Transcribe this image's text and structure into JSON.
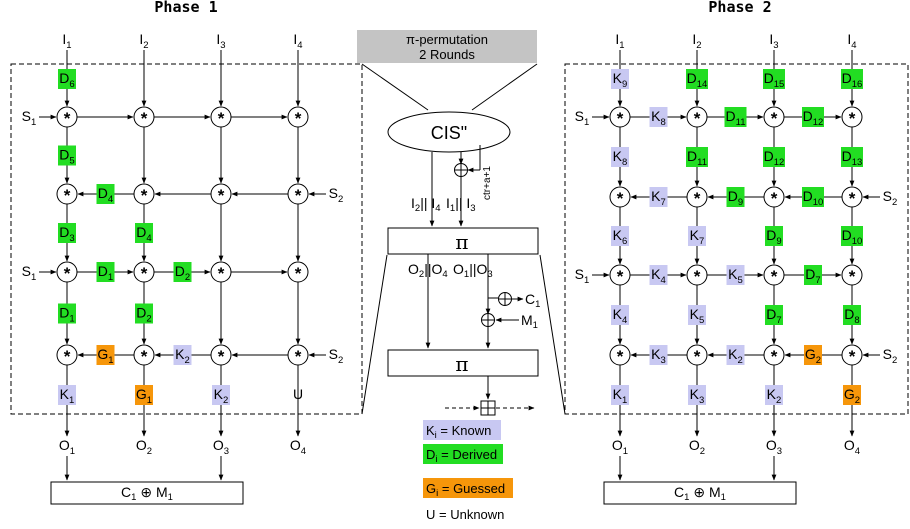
{
  "titles": {
    "phase1": "Phase 1",
    "phase2": "Phase 2"
  },
  "banner": {
    "line1": "π-permutation",
    "line2": "2 Rounds"
  },
  "cis": "CIS\"",
  "ctr": "ctr+a+1",
  "pi_symbol": "π",
  "combine": {
    "main": "C",
    "sub": "1",
    "op": " ⊕ M",
    "sub2": "1"
  },
  "legend": [
    {
      "letter": "K",
      "sub": "i",
      "text": " = Known",
      "color": "#c8c8f2"
    },
    {
      "letter": "D",
      "sub": "i",
      "text": " = Derived",
      "color": "#22dd22"
    },
    {
      "letter": "G",
      "sub": "i",
      "text": " = Guessed",
      "color": "#f6960a"
    },
    {
      "letter": "U",
      "sub": "",
      "text": " = Unknown",
      "color": ""
    }
  ],
  "colors": {
    "K": "#c8c8f2",
    "D": "#22dd22",
    "G": "#f6960a"
  },
  "phase1": {
    "inputs": [
      [
        "I",
        "1"
      ],
      [
        "I",
        "2"
      ],
      [
        "I",
        "3"
      ],
      [
        "I",
        "4"
      ]
    ],
    "outputs": [
      [
        "O",
        "1"
      ],
      [
        "O",
        "2"
      ],
      [
        "O",
        "3"
      ],
      [
        "O",
        "4"
      ]
    ],
    "side_labels": [
      [
        "S",
        "1"
      ],
      [
        "S",
        "2"
      ],
      [
        "S",
        "1"
      ],
      [
        "S",
        "2"
      ]
    ],
    "boxes": [
      [
        "D",
        "6"
      ],
      [
        "D",
        "5"
      ],
      [
        "D",
        "4"
      ],
      [
        "D",
        "3"
      ],
      [
        "D",
        "4"
      ],
      [
        "D",
        "1"
      ],
      [
        "D",
        "2"
      ],
      [
        "D",
        "1"
      ],
      [
        "D",
        "2"
      ],
      [
        "G",
        "1"
      ],
      [
        "K",
        "2"
      ],
      [
        "K",
        "1"
      ],
      [
        "G",
        "1"
      ],
      [
        "K",
        "2"
      ],
      [
        "",
        "U"
      ]
    ]
  },
  "phase2": {
    "inputs": [
      [
        "I",
        "1"
      ],
      [
        "I",
        "2"
      ],
      [
        "I",
        "3"
      ],
      [
        "I",
        "4"
      ]
    ],
    "outputs": [
      [
        "O",
        "1"
      ],
      [
        "O",
        "2"
      ],
      [
        "O",
        "3"
      ],
      [
        "O",
        "4"
      ]
    ],
    "side_labels": [
      [
        "S",
        "1"
      ],
      [
        "S",
        "2"
      ],
      [
        "S",
        "1"
      ],
      [
        "S",
        "2"
      ]
    ],
    "boxes": [
      [
        "K",
        "9"
      ],
      [
        "D",
        "14"
      ],
      [
        "D",
        "15"
      ],
      [
        "D",
        "16"
      ],
      [
        "K",
        "8"
      ],
      [
        "D",
        "11"
      ],
      [
        "D",
        "12"
      ],
      [
        "K",
        "8"
      ],
      [
        "D",
        "11"
      ],
      [
        "D",
        "12"
      ],
      [
        "D",
        "13"
      ],
      [
        "K",
        "7"
      ],
      [
        "D",
        "9"
      ],
      [
        "D",
        "10"
      ],
      [
        "K",
        "6"
      ],
      [
        "K",
        "7"
      ],
      [
        "D",
        "9"
      ],
      [
        "D",
        "10"
      ],
      [
        "K",
        "4"
      ],
      [
        "K",
        "5"
      ],
      [
        "D",
        "7"
      ],
      [
        "K",
        "4"
      ],
      [
        "K",
        "5"
      ],
      [
        "D",
        "7"
      ],
      [
        "D",
        "8"
      ],
      [
        "K",
        "3"
      ],
      [
        "K",
        "2"
      ],
      [
        "G",
        "2"
      ],
      [
        "K",
        "1"
      ],
      [
        "K",
        "3"
      ],
      [
        "K",
        "2"
      ],
      [
        "G",
        "2"
      ]
    ]
  },
  "middle": {
    "in_left": {
      "a": "I",
      "as": "2",
      "op": "|| I",
      "b": "4"
    },
    "in_right": {
      "a": "I",
      "as": "1",
      "op": "|| I",
      "b": "3"
    },
    "out_left": {
      "a": "O",
      "as": "2",
      "op": "||O",
      "b": "4"
    },
    "out_right": {
      "a": "O",
      "as": "1",
      "op": "||O",
      "b": "3"
    },
    "c1": [
      "C",
      "1"
    ],
    "m1": [
      "M",
      "1"
    ]
  }
}
